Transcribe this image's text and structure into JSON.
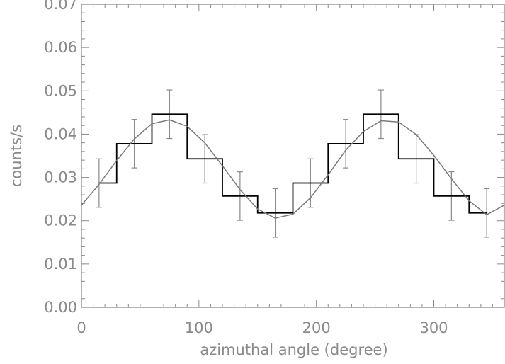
{
  "chart_data": {
    "type": "line",
    "xlabel": "azimuthal angle (degree)",
    "ylabel": "counts/s",
    "xlim": [
      0,
      360
    ],
    "ylim": [
      0.0,
      0.07
    ],
    "x_ticks": [
      0,
      100,
      200,
      300
    ],
    "x_tick_labels": [
      "0",
      "100",
      "200",
      "300"
    ],
    "y_ticks": [
      0.0,
      0.01,
      0.02,
      0.03,
      0.04,
      0.05,
      0.06,
      0.07
    ],
    "y_tick_labels": [
      "0.00",
      "0.01",
      "0.02",
      "0.03",
      "0.04",
      "0.05",
      "0.06",
      "0.07"
    ],
    "grid": false,
    "series": [
      {
        "kind": "histogram-with-errorbars",
        "color": "#000000",
        "bin_edges": [
          15,
          30,
          60,
          90,
          120,
          150,
          180,
          210,
          240,
          270,
          300,
          330,
          345
        ],
        "values": [
          0.0287,
          0.0378,
          0.0446,
          0.0343,
          0.0257,
          0.0218,
          0.0287,
          0.0378,
          0.0446,
          0.0343,
          0.0257,
          0.0218
        ],
        "errorbar_x": [
          15,
          45,
          75,
          105,
          135,
          165,
          195,
          225,
          255,
          285,
          315,
          345
        ],
        "errorbar_value": [
          0.0287,
          0.0378,
          0.0446,
          0.0343,
          0.0257,
          0.0218,
          0.0287,
          0.0378,
          0.0446,
          0.0343,
          0.0257,
          0.0218
        ],
        "errorbar_err": [
          0.0056,
          0.0056,
          0.0056,
          0.0056,
          0.0056,
          0.0056,
          0.0056,
          0.0056,
          0.0056,
          0.0056,
          0.0056,
          0.0056
        ],
        "errorbar_color": "#8a8a8a"
      },
      {
        "kind": "fit-curve",
        "color": "#7a7a7a",
        "equation": "y = 0.0322 + 0.0112*cos(2*(x - 72deg))",
        "x": [
          0,
          15,
          30,
          45,
          60,
          75,
          90,
          105,
          120,
          135,
          150,
          165,
          180,
          195,
          210,
          225,
          240,
          255,
          270,
          285,
          300,
          315,
          330,
          345,
          360
        ],
        "values": [
          0.0236,
          0.0284,
          0.0339,
          0.0389,
          0.0424,
          0.0433,
          0.0418,
          0.038,
          0.0327,
          0.0272,
          0.0227,
          0.0206,
          0.0215,
          0.0253,
          0.0306,
          0.0363,
          0.0406,
          0.0431,
          0.0428,
          0.0399,
          0.0351,
          0.0297,
          0.0246,
          0.0214,
          0.0236
        ]
      }
    ]
  }
}
